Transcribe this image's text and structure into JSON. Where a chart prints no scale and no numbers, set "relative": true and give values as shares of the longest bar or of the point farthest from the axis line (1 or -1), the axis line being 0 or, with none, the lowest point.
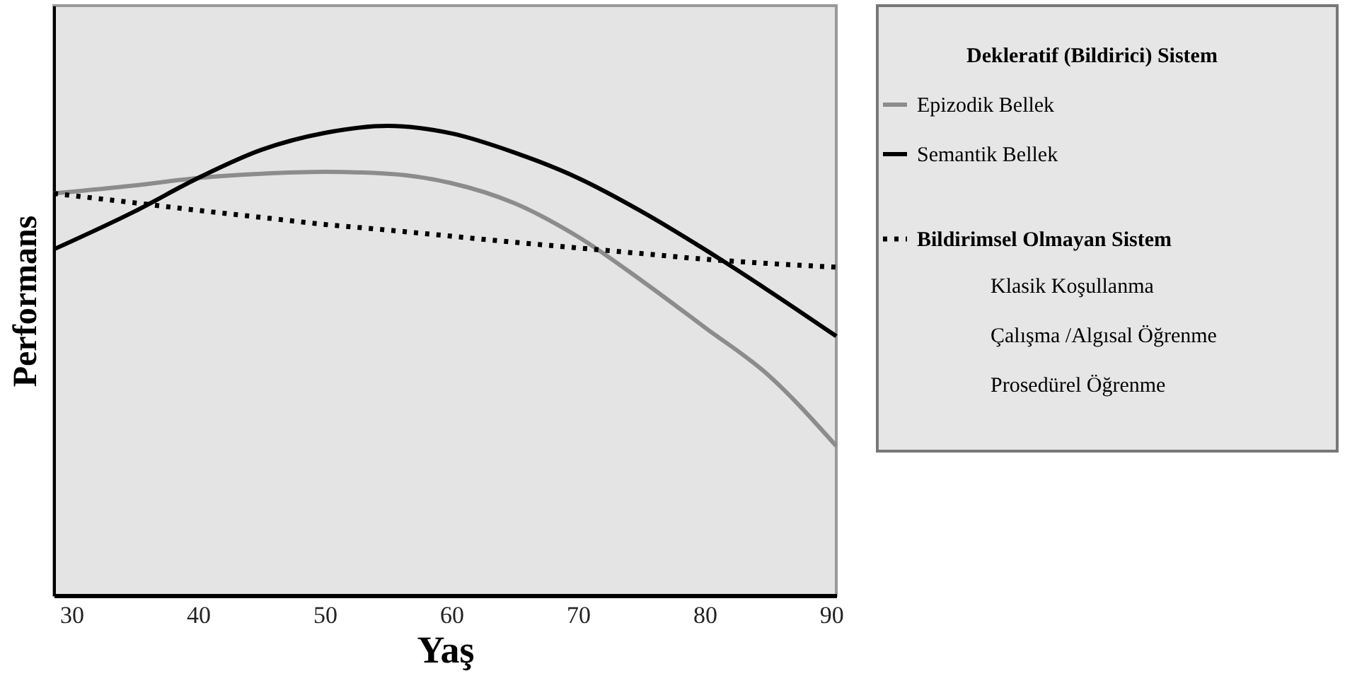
{
  "chart_data": {
    "type": "line",
    "relative": true,
    "xlabel": "Yaş",
    "ylabel": "Performans",
    "legend_title": "Dekleratif (Bildirici) Sistem",
    "legend": "right",
    "grid": false,
    "marker": "none",
    "xlim": [
      28.6,
      90.4
    ],
    "xticks": [
      30,
      40,
      50,
      60,
      70,
      80,
      90
    ],
    "x": [
      28.6,
      35,
      40,
      45,
      50,
      55,
      60,
      65,
      70,
      75,
      80,
      85,
      90.4
    ],
    "series": [
      {
        "name": "Epizodik Bellek",
        "color": "#8c8c8c",
        "line_style": "solid",
        "values": [
          0.856,
          0.873,
          0.889,
          0.898,
          0.902,
          0.898,
          0.878,
          0.835,
          0.764,
          0.671,
          0.571,
          0.47,
          0.318
        ]
      },
      {
        "name": "Semantik Bellek",
        "color": "#000000",
        "line_style": "solid",
        "values": [
          0.737,
          0.818,
          0.889,
          0.949,
          0.985,
          1.0,
          0.984,
          0.943,
          0.889,
          0.818,
          0.737,
          0.65,
          0.552
        ]
      },
      {
        "name": "Bildirimsel Olmayan Sistem",
        "color": "#000000",
        "line_style": "dotted",
        "values": [
          0.856,
          0.836,
          0.82,
          0.805,
          0.79,
          0.778,
          0.765,
          0.752,
          0.74,
          0.728,
          0.716,
          0.707,
          0.699
        ]
      }
    ],
    "annotations": [
      "Klasik Koşullanma",
      "Çalışma /Algısal Öğrenme",
      "Prosedürel Öğrenme"
    ]
  }
}
